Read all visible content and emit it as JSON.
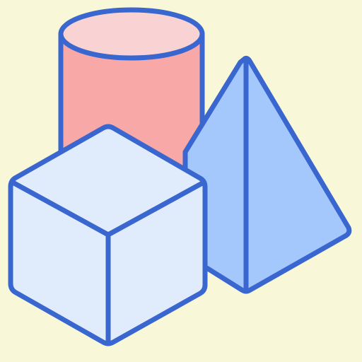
{
  "illustration": {
    "subject": "geometric-solids",
    "shapes": [
      {
        "name": "cylinder",
        "fill": "#F9A8A8",
        "top_fill": "#F9D3D3"
      },
      {
        "name": "pyramid",
        "fill": "#A4C8FB"
      },
      {
        "name": "cube",
        "fill": "#E0ECFC"
      }
    ]
  },
  "colors": {
    "background": "#F8F8D8",
    "stroke": "#3A66CF",
    "cylinder_body": "#F9A8A8",
    "cylinder_top": "#F9D3D3",
    "pyramid": "#A4C8FB",
    "cube": "#E0ECFC"
  }
}
